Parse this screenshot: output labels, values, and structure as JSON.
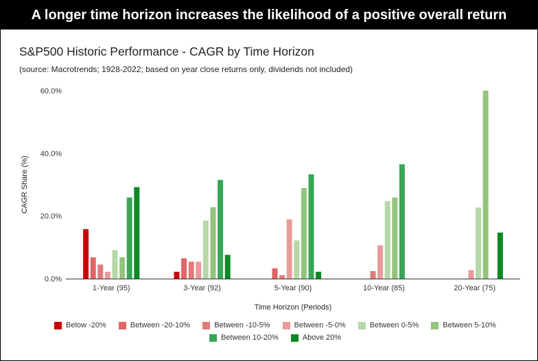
{
  "banner": {
    "text": "A longer time horizon increases the likelihood of a positive overall return"
  },
  "chart_data": {
    "type": "bar",
    "title": "S&P500 Historic Performance - CAGR by Time Horizon",
    "subtitle": "(source: Macrotrends; 1928-2022; based on year close returns only, dividends not included)",
    "xlabel": "Time Horizon (Periods)",
    "ylabel": "CAGR Share (%)",
    "ylim": [
      0,
      60
    ],
    "yticks": [
      0,
      20,
      40,
      60
    ],
    "ytick_labels": [
      "0.0%",
      "20.0%",
      "40.0%",
      "60.0%"
    ],
    "grid": false,
    "legend_position": "bottom",
    "categories": [
      "1-Year (95)",
      "3-Year (92)",
      "5-Year (90)",
      "10-Year (85)",
      "20-Year (75)"
    ],
    "series": [
      {
        "name": "Below -20%",
        "color": "#cc0000",
        "values": [
          15.8,
          2.2,
          0,
          0,
          0
        ]
      },
      {
        "name": "Between -20-10%",
        "color": "#e06666",
        "values": [
          6.8,
          6.5,
          3.3,
          0,
          0
        ]
      },
      {
        "name": "Between -10-5%",
        "color": "#e07b7b",
        "values": [
          4.5,
          5.4,
          1.1,
          2.4,
          0
        ]
      },
      {
        "name": "Between -5-0%",
        "color": "#ea9999",
        "values": [
          2.2,
          5.4,
          18.9,
          10.6,
          2.7
        ]
      },
      {
        "name": "Between 0-5%",
        "color": "#b6d7a8",
        "values": [
          9.1,
          18.5,
          12.2,
          24.7,
          22.7
        ]
      },
      {
        "name": "Between 5-10%",
        "color": "#93c47d",
        "values": [
          6.8,
          22.8,
          28.9,
          25.9,
          60.0
        ]
      },
      {
        "name": "Between 10-20%",
        "color": "#3aa655",
        "values": [
          25.9,
          31.5,
          33.3,
          36.5,
          0
        ]
      },
      {
        "name": "Above 20%",
        "color": "#0b8a23",
        "values": [
          29.2,
          7.6,
          2.2,
          0,
          14.7
        ]
      }
    ]
  }
}
